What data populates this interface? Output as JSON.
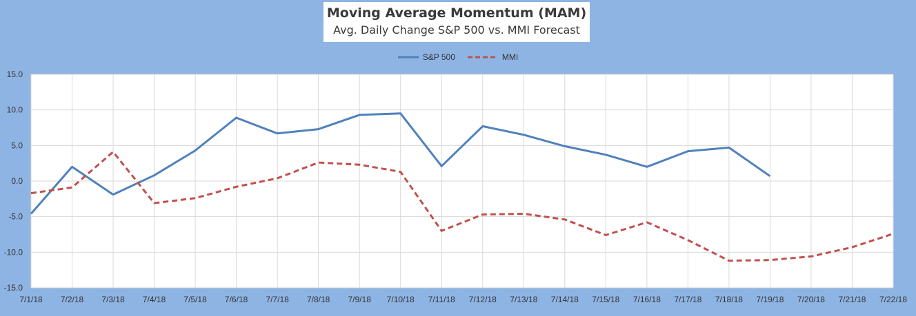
{
  "chart_data": {
    "type": "line",
    "title": "Moving Average Momentum (MAM)",
    "subtitle": "Avg. Daily Change S&P 500 vs. MMI Forecast",
    "xlabel": "",
    "ylabel": "",
    "categories": [
      "7/1/18",
      "7/2/18",
      "7/3/18",
      "7/4/18",
      "7/5/18",
      "7/6/18",
      "7/7/18",
      "7/8/18",
      "7/9/18",
      "7/10/18",
      "7/11/18",
      "7/12/18",
      "7/13/18",
      "7/14/18",
      "7/15/18",
      "7/16/18",
      "7/17/18",
      "7/18/18",
      "7/19/18",
      "7/20/18",
      "7/21/18",
      "7/22/18"
    ],
    "ylim": [
      -15,
      15
    ],
    "yticks": [
      "15.0",
      "10.0",
      "5.0",
      "0.0",
      "-5.0",
      "-10.0",
      "-15.0"
    ],
    "grid": true,
    "legend_position": "top",
    "series": [
      {
        "name": "S&P 500",
        "color": "#4f81bd",
        "style": "solid",
        "values": [
          -4.6,
          2.0,
          -1.9,
          0.8,
          4.3,
          8.9,
          6.7,
          7.3,
          9.3,
          9.5,
          2.1,
          7.7,
          6.5,
          4.9,
          3.7,
          2.0,
          4.2,
          4.7,
          0.7,
          null,
          null,
          null
        ]
      },
      {
        "name": "MMI",
        "color": "#c0504d",
        "style": "dashed",
        "values": [
          -1.7,
          -0.9,
          4.1,
          -3.1,
          -2.4,
          -0.8,
          0.4,
          2.6,
          2.3,
          1.3,
          -7.0,
          -4.7,
          -4.6,
          -5.4,
          -7.6,
          -5.8,
          -8.3,
          -11.2,
          -11.1,
          -10.6,
          -9.3,
          -7.4
        ]
      }
    ]
  }
}
